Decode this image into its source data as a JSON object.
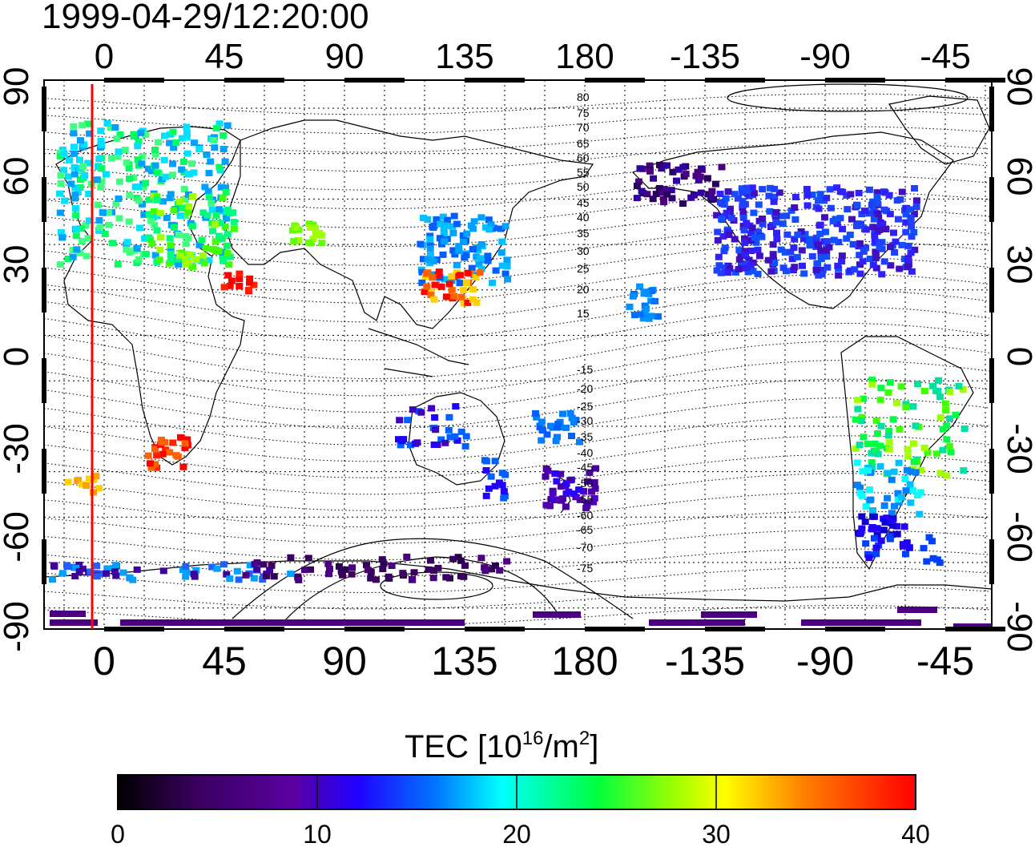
{
  "timestamp": "1999-04-29/12:20:00",
  "axes": {
    "lon_ticks": [
      "0",
      "45",
      "90",
      "135",
      "180",
      "-135",
      "-90",
      "-45"
    ],
    "lat_ticks": [
      "90",
      "60",
      "30",
      "0",
      "-30",
      "-60",
      "-90"
    ]
  },
  "mag_lat_labels_north": [
    "80",
    "75",
    "70",
    "65",
    "60",
    "55",
    "50",
    "45",
    "40",
    "35",
    "30",
    "25",
    "20",
    "15"
  ],
  "mag_lat_labels_south": [
    "-15",
    "-20",
    "-25",
    "-30",
    "-35",
    "-40",
    "-45",
    "-50",
    "-55",
    "-60",
    "-65",
    "-70",
    "-75"
  ],
  "colorbar": {
    "title_main": "TEC  [10",
    "title_sup1": "16",
    "title_mid": "/m",
    "title_sup2": "2",
    "title_end": "]",
    "ticks": [
      "0",
      "10",
      "20",
      "30",
      "40"
    ],
    "min": 0,
    "max": 40
  },
  "colors": {
    "meridian_line": "#ff0000",
    "frame": "#000000"
  }
}
